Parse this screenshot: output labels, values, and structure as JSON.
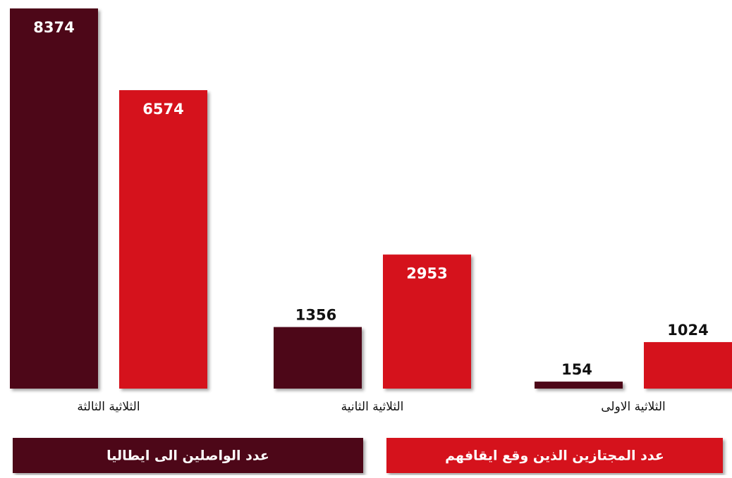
{
  "chart_data": {
    "type": "bar",
    "categories": [
      "الثلاثية الثالثة",
      "الثلاثية الثانية",
      "الثلاثية الاولى"
    ],
    "series": [
      {
        "name": "عدد الواصلين الى ايطاليا",
        "color": "#4d0718",
        "values": [
          8374,
          1356,
          154
        ]
      },
      {
        "name": "عدد المجتازين الذين وقع ايقافهم",
        "color": "#d5121c",
        "values": [
          6574,
          2953,
          1024
        ]
      }
    ],
    "ylim": [
      0,
      8374
    ]
  }
}
